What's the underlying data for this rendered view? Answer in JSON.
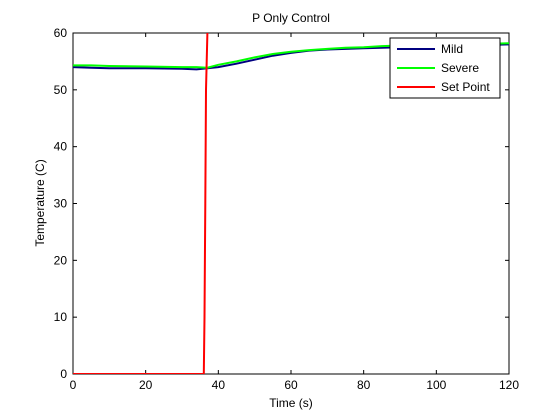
{
  "chart_data": {
    "type": "line",
    "title": "P Only Control",
    "xlabel": "Time (s)",
    "ylabel": "Temperature (C)",
    "xlim": [
      0,
      120
    ],
    "ylim": [
      0,
      60
    ],
    "xticks": [
      0,
      20,
      40,
      60,
      80,
      100,
      120
    ],
    "yticks": [
      0,
      10,
      20,
      30,
      40,
      50,
      60
    ],
    "grid": false,
    "legend_position": "top-right",
    "series": [
      {
        "name": "Mild",
        "color": "#000080",
        "x": [
          0,
          5,
          10,
          20,
          30,
          34,
          37,
          40,
          45,
          50,
          55,
          60,
          65,
          70,
          75,
          80,
          85,
          90,
          95,
          100,
          105,
          110,
          115,
          120
        ],
        "y": [
          54,
          53.9,
          53.8,
          53.8,
          53.7,
          53.6,
          53.8,
          54.0,
          54.6,
          55.3,
          56.0,
          56.5,
          56.9,
          57.1,
          57.2,
          57.3,
          57.4,
          57.5,
          57.6,
          57.7,
          57.8,
          57.8,
          57.9,
          58
        ]
      },
      {
        "name": "Severe",
        "color": "#00FF00",
        "x": [
          0,
          5,
          10,
          20,
          30,
          34,
          37,
          40,
          45,
          50,
          55,
          60,
          65,
          70,
          75,
          80,
          85,
          90,
          95,
          100,
          105,
          110,
          115,
          120
        ],
        "y": [
          54.3,
          54.3,
          54.2,
          54.1,
          54.0,
          54.0,
          53.9,
          54.4,
          55.0,
          55.7,
          56.3,
          56.7,
          57.0,
          57.2,
          57.4,
          57.5,
          57.7,
          57.8,
          57.9,
          58.0,
          58.0,
          58.1,
          58.1,
          58.2
        ]
      },
      {
        "name": "Set Point",
        "color": "#FF0000",
        "x": [
          0,
          36,
          36.2,
          36.4,
          36.6,
          36.8,
          37,
          37.4
        ],
        "y": [
          0,
          0,
          10,
          30,
          50,
          55,
          60,
          62
        ]
      }
    ]
  }
}
